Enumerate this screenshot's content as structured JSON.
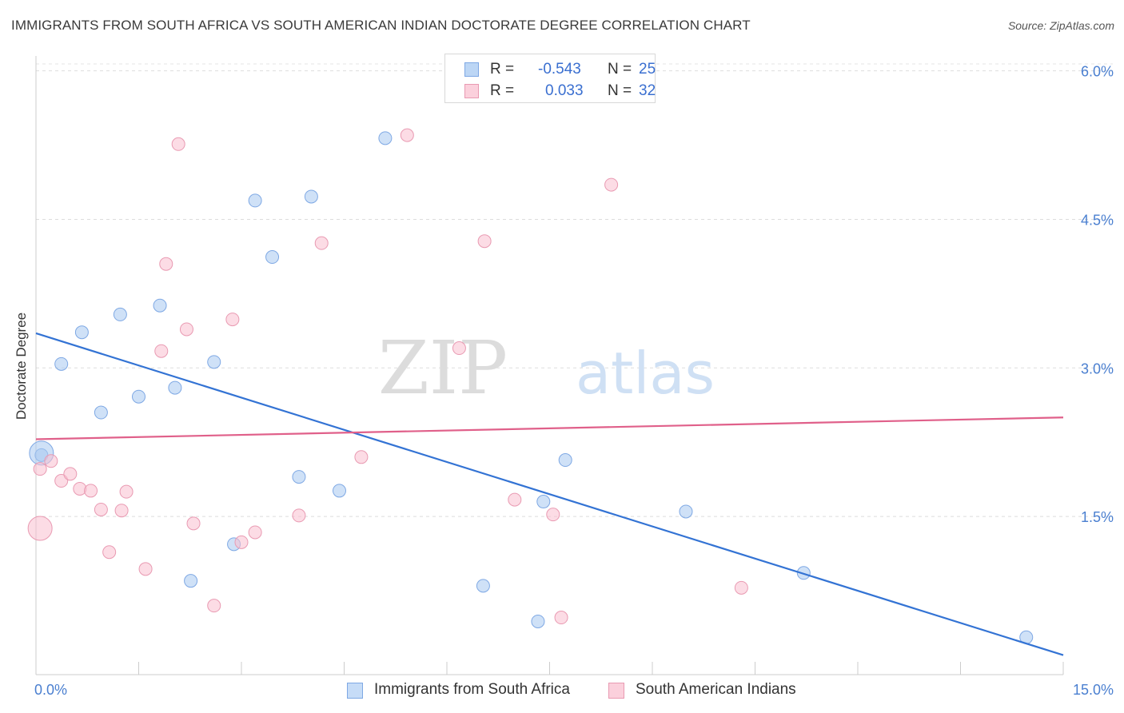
{
  "title": "IMMIGRANTS FROM SOUTH AFRICA VS SOUTH AMERICAN INDIAN DOCTORATE DEGREE CORRELATION CHART",
  "source": "Source: ZipAtlas.com",
  "watermark": {
    "zip": "ZIP",
    "atlas": "atlas"
  },
  "legend": {
    "rows": [
      {
        "r_label": "R =",
        "r_value": "-0.543",
        "n_label": "N =",
        "n_value": "25",
        "color": "#a8c8f0",
        "border": "#6f9fe0"
      },
      {
        "r_label": "R =",
        "r_value": "0.033",
        "n_label": "N =",
        "n_value": "32",
        "color": "#f9c0d0",
        "border": "#e890aa"
      }
    ]
  },
  "bottom_legend": [
    {
      "label": "Immigrants from South Africa",
      "color": "#c6dcf7",
      "border": "#7ea8e4"
    },
    {
      "label": "South American Indians",
      "color": "#fbd0dc",
      "border": "#e99ab2"
    }
  ],
  "chart_data": {
    "type": "scatter",
    "title": "IMMIGRANTS FROM SOUTH AFRICA VS SOUTH AMERICAN INDIAN DOCTORATE DEGREE CORRELATION CHART",
    "xlabel": "",
    "ylabel": "Doctorate Degree",
    "xlim": [
      0,
      15
    ],
    "ylim": [
      0,
      6.15
    ],
    "x_tick_labels": [
      "0.0%",
      "15.0%"
    ],
    "y_ticks": [
      1.5,
      3.0,
      4.5,
      6.0
    ],
    "y_tick_labels": [
      "1.5%",
      "3.0%",
      "4.5%",
      "6.0%"
    ],
    "grid": "horizontal dashed",
    "legend_position": "top-center",
    "series": [
      {
        "name": "Immigrants from South Africa",
        "color": "#a8c8f0",
        "edge": "#7ea8e4",
        "line_color": "#3373d4",
        "x": [
          0.08,
          0.37,
          0.67,
          0.95,
          1.23,
          1.5,
          1.81,
          2.03,
          2.26,
          2.6,
          2.89,
          3.2,
          3.45,
          3.84,
          4.02,
          4.43,
          5.1,
          6.53,
          7.33,
          7.41,
          7.73,
          9.49,
          11.21,
          14.46,
          0.08
        ],
        "y": [
          2.12,
          3.04,
          3.36,
          2.55,
          3.54,
          2.71,
          3.63,
          2.8,
          0.85,
          3.06,
          1.22,
          4.69,
          4.12,
          1.9,
          4.73,
          1.76,
          5.32,
          0.8,
          0.44,
          1.65,
          2.07,
          1.55,
          0.93,
          0.28,
          2.14
        ]
      },
      {
        "name": "South American Indians",
        "color": "#f9c0d0",
        "edge": "#e99ab2",
        "line_color": "#e0608a",
        "x": [
          0.06,
          0.22,
          0.37,
          0.5,
          0.64,
          0.8,
          0.95,
          1.07,
          1.25,
          1.32,
          1.6,
          1.83,
          1.9,
          2.08,
          2.2,
          2.3,
          2.6,
          2.87,
          3.0,
          3.2,
          3.84,
          4.17,
          4.75,
          5.42,
          6.18,
          6.55,
          6.99,
          7.55,
          7.67,
          8.4,
          10.3,
          0.06
        ],
        "y": [
          1.98,
          2.06,
          1.86,
          1.93,
          1.78,
          1.76,
          1.57,
          1.14,
          1.56,
          1.75,
          0.97,
          3.17,
          4.05,
          5.26,
          3.39,
          1.43,
          0.6,
          3.49,
          1.24,
          1.34,
          1.51,
          4.26,
          2.1,
          5.35,
          3.2,
          4.28,
          1.67,
          1.52,
          0.48,
          4.85,
          0.78,
          1.38
        ]
      }
    ],
    "trend_lines": [
      {
        "series": "Immigrants from South Africa",
        "x": [
          0,
          15
        ],
        "y": [
          3.35,
          0.1
        ]
      },
      {
        "series": "South American Indians",
        "x": [
          0,
          15
        ],
        "y": [
          2.28,
          2.5
        ]
      }
    ]
  }
}
